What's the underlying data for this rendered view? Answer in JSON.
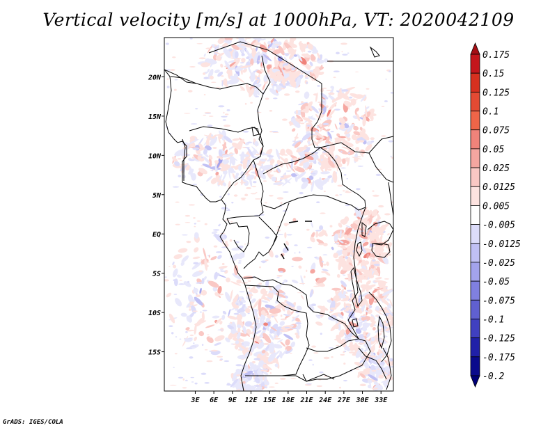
{
  "title": "Vertical velocity [m/s] at 1000hPa, VT: 2020042109",
  "footer": "GrADS: IGES/COLA",
  "map": {
    "lon_range": [
      -2,
      35
    ],
    "lat_range": [
      -20,
      25
    ],
    "x_ticks": [
      "3E",
      "6E",
      "9E",
      "12E",
      "15E",
      "18E",
      "21E",
      "24E",
      "27E",
      "30E",
      "33E"
    ],
    "x_tick_values": [
      3,
      6,
      9,
      12,
      15,
      18,
      21,
      24,
      27,
      30,
      33
    ],
    "y_ticks": [
      "20N",
      "15N",
      "10N",
      "5N",
      "EQ",
      "5S",
      "10S",
      "15S"
    ],
    "y_tick_values": [
      20,
      15,
      10,
      5,
      0,
      -5,
      -10,
      -15
    ]
  },
  "colorbar": {
    "levels": [
      "0.175",
      "0.15",
      "0.125",
      "0.1",
      "0.075",
      "0.05",
      "0.025",
      "0.0125",
      "0.005",
      "-0.005",
      "-0.0125",
      "-0.025",
      "-0.05",
      "-0.075",
      "-0.1",
      "-0.125",
      "-0.175",
      "-0.2"
    ],
    "colors": [
      "#a50f15",
      "#c4161c",
      "#d7301f",
      "#e34a33",
      "#ef6548",
      "#f0837a",
      "#f5a6a0",
      "#fac8c4",
      "#fde3e0",
      "#ffffff",
      "#dcdcfa",
      "#c0c0f4",
      "#a3a3ec",
      "#8080e0",
      "#6060d0",
      "#4040c0",
      "#2020a8",
      "#0a0a8c",
      "#000078"
    ]
  }
}
